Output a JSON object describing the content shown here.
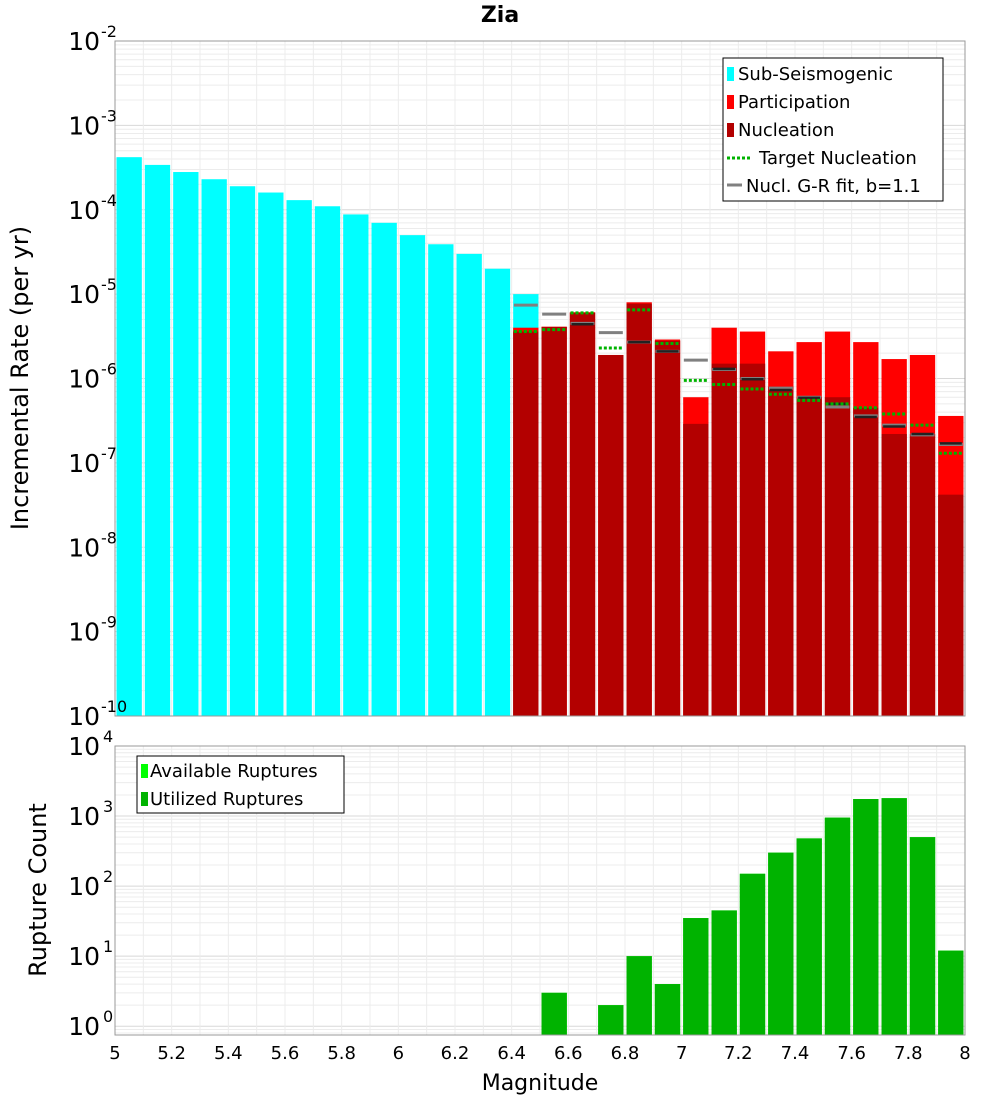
{
  "chart_data": [
    {
      "type": "bar",
      "title": "Zia",
      "xlabel": "",
      "ylabel": "Incremental Rate (per yr)",
      "yscale": "log",
      "ylim": [
        1e-10,
        0.01
      ],
      "xlim": [
        5,
        8
      ],
      "ytick_labels": [
        {
          "base": "10",
          "exp": "-2"
        },
        {
          "base": "10",
          "exp": "-3"
        },
        {
          "base": "10",
          "exp": "-4"
        },
        {
          "base": "10",
          "exp": "-5"
        },
        {
          "base": "10",
          "exp": "-6"
        },
        {
          "base": "10",
          "exp": "-7"
        },
        {
          "base": "10",
          "exp": "-8"
        },
        {
          "base": "10",
          "exp": "-9"
        },
        {
          "base": "10",
          "exp": "-10"
        }
      ],
      "grid": true,
      "legend_position": "top-right",
      "legend": [
        "Sub-Seismogenic",
        "Participation",
        "Nucleation",
        "Target Nucleation",
        "Nucl. G-R fit, b=1.1"
      ],
      "colors": {
        "sub_seismogenic": "#00ffff",
        "participation": "#ff0000",
        "nucleation": "#b30000",
        "target": "#00b300",
        "gr_fit": "#808080",
        "nucl_marker": "#222222"
      },
      "x": [
        5.05,
        5.15,
        5.25,
        5.35,
        5.45,
        5.55,
        5.65,
        5.75,
        5.85,
        5.95,
        6.05,
        6.15,
        6.25,
        6.35,
        6.45,
        6.55,
        6.65,
        6.75,
        6.85,
        6.95,
        7.05,
        7.15,
        7.25,
        7.35,
        7.45,
        7.55,
        7.65,
        7.75,
        7.85,
        7.95
      ],
      "series": [
        {
          "name": "Sub-Seismogenic",
          "values": [
            0.00042,
            0.00034,
            0.00028,
            0.00023,
            0.00019,
            0.00016,
            0.00013,
            0.00011,
            8.8e-05,
            7e-05,
            5e-05,
            3.9e-05,
            3e-05,
            2e-05,
            1e-05,
            null,
            null,
            null,
            null,
            null,
            null,
            null,
            null,
            null,
            null,
            null,
            null,
            null,
            null,
            null
          ]
        },
        {
          "name": "Participation",
          "values": [
            null,
            null,
            null,
            null,
            null,
            null,
            null,
            null,
            null,
            null,
            null,
            null,
            null,
            null,
            4e-06,
            4.1e-06,
            6.1e-06,
            1.9e-06,
            8e-06,
            2.9e-06,
            6e-07,
            4e-06,
            3.6e-06,
            2.1e-06,
            2.7e-06,
            3.6e-06,
            2.7e-06,
            1.7e-06,
            1.9e-06,
            3.6e-07
          ]
        },
        {
          "name": "Nucleation",
          "values": [
            null,
            null,
            null,
            null,
            null,
            null,
            null,
            null,
            null,
            null,
            null,
            null,
            null,
            null,
            3.6e-06,
            4.1e-06,
            6e-06,
            1.9e-06,
            7.7e-06,
            2.8e-06,
            2.9e-07,
            1.5e-06,
            1.5e-06,
            8e-07,
            6e-07,
            6e-07,
            4.5e-07,
            2.2e-07,
            2.2e-07,
            4.2e-08
          ]
        },
        {
          "name": "Target Nucleation",
          "values": [
            null,
            null,
            null,
            null,
            null,
            null,
            null,
            null,
            null,
            null,
            null,
            null,
            null,
            null,
            3.6e-06,
            3.8e-06,
            6e-06,
            2.3e-06,
            6.5e-06,
            2.6e-06,
            9.5e-07,
            8.5e-07,
            7.5e-07,
            6.5e-07,
            5.5e-07,
            5e-07,
            4.5e-07,
            3.8e-07,
            2.8e-07,
            1.3e-07
          ]
        },
        {
          "name": "Nucl. G-R fit, b=1.1",
          "values": [
            null,
            null,
            null,
            null,
            null,
            null,
            null,
            null,
            null,
            null,
            null,
            null,
            null,
            null,
            7.4e-06,
            5.8e-06,
            4.5e-06,
            3.5e-06,
            2.7e-06,
            2.1e-06,
            1.65e-06,
            1.28e-06,
            1e-06,
            7.7e-07,
            6e-07,
            4.6e-07,
            3.6e-07,
            2.8e-07,
            2.15e-07,
            1.65e-07
          ]
        },
        {
          "name": "nucleation_markers",
          "values": [
            null,
            null,
            null,
            null,
            null,
            null,
            null,
            null,
            null,
            null,
            null,
            null,
            null,
            null,
            null,
            null,
            4.4e-06,
            null,
            2.7e-06,
            2.1e-06,
            null,
            1.3e-06,
            9.8e-07,
            7.3e-07,
            5.9e-07,
            5e-07,
            3.5e-07,
            2.7e-07,
            2.2e-07,
            1.7e-07
          ]
        }
      ]
    },
    {
      "type": "bar",
      "title": "",
      "xlabel": "Magnitude",
      "ylabel": "Rupture Count",
      "yscale": "log",
      "ylim": [
        0.75,
        10000
      ],
      "xlim": [
        5,
        8
      ],
      "xticks": [
        "5",
        "5.2",
        "5.4",
        "5.6",
        "5.8",
        "6",
        "6.2",
        "6.4",
        "6.6",
        "6.8",
        "7",
        "7.2",
        "7.4",
        "7.6",
        "7.8",
        "8"
      ],
      "ytick_labels": [
        {
          "base": "10",
          "exp": "4"
        },
        {
          "base": "10",
          "exp": "3"
        },
        {
          "base": "10",
          "exp": "2"
        },
        {
          "base": "10",
          "exp": "1"
        },
        {
          "base": "10",
          "exp": "0"
        }
      ],
      "grid": true,
      "legend_position": "top-left",
      "legend": [
        "Available Ruptures",
        "Utilized Ruptures"
      ],
      "colors": {
        "available": "#00ff00",
        "utilized": "#00b300"
      },
      "x": [
        6.55,
        6.75,
        6.85,
        6.95,
        7.05,
        7.15,
        7.25,
        7.35,
        7.45,
        7.55,
        7.65,
        7.75,
        7.85,
        7.95
      ],
      "series": [
        {
          "name": "Available Ruptures",
          "values": [
            3,
            2,
            10,
            4,
            35,
            45,
            150,
            300,
            480,
            950,
            1750,
            1800,
            500,
            12
          ]
        },
        {
          "name": "Utilized Ruptures",
          "values": [
            3,
            2,
            10,
            4,
            35,
            45,
            150,
            300,
            480,
            950,
            1750,
            1800,
            500,
            12
          ]
        }
      ]
    }
  ]
}
